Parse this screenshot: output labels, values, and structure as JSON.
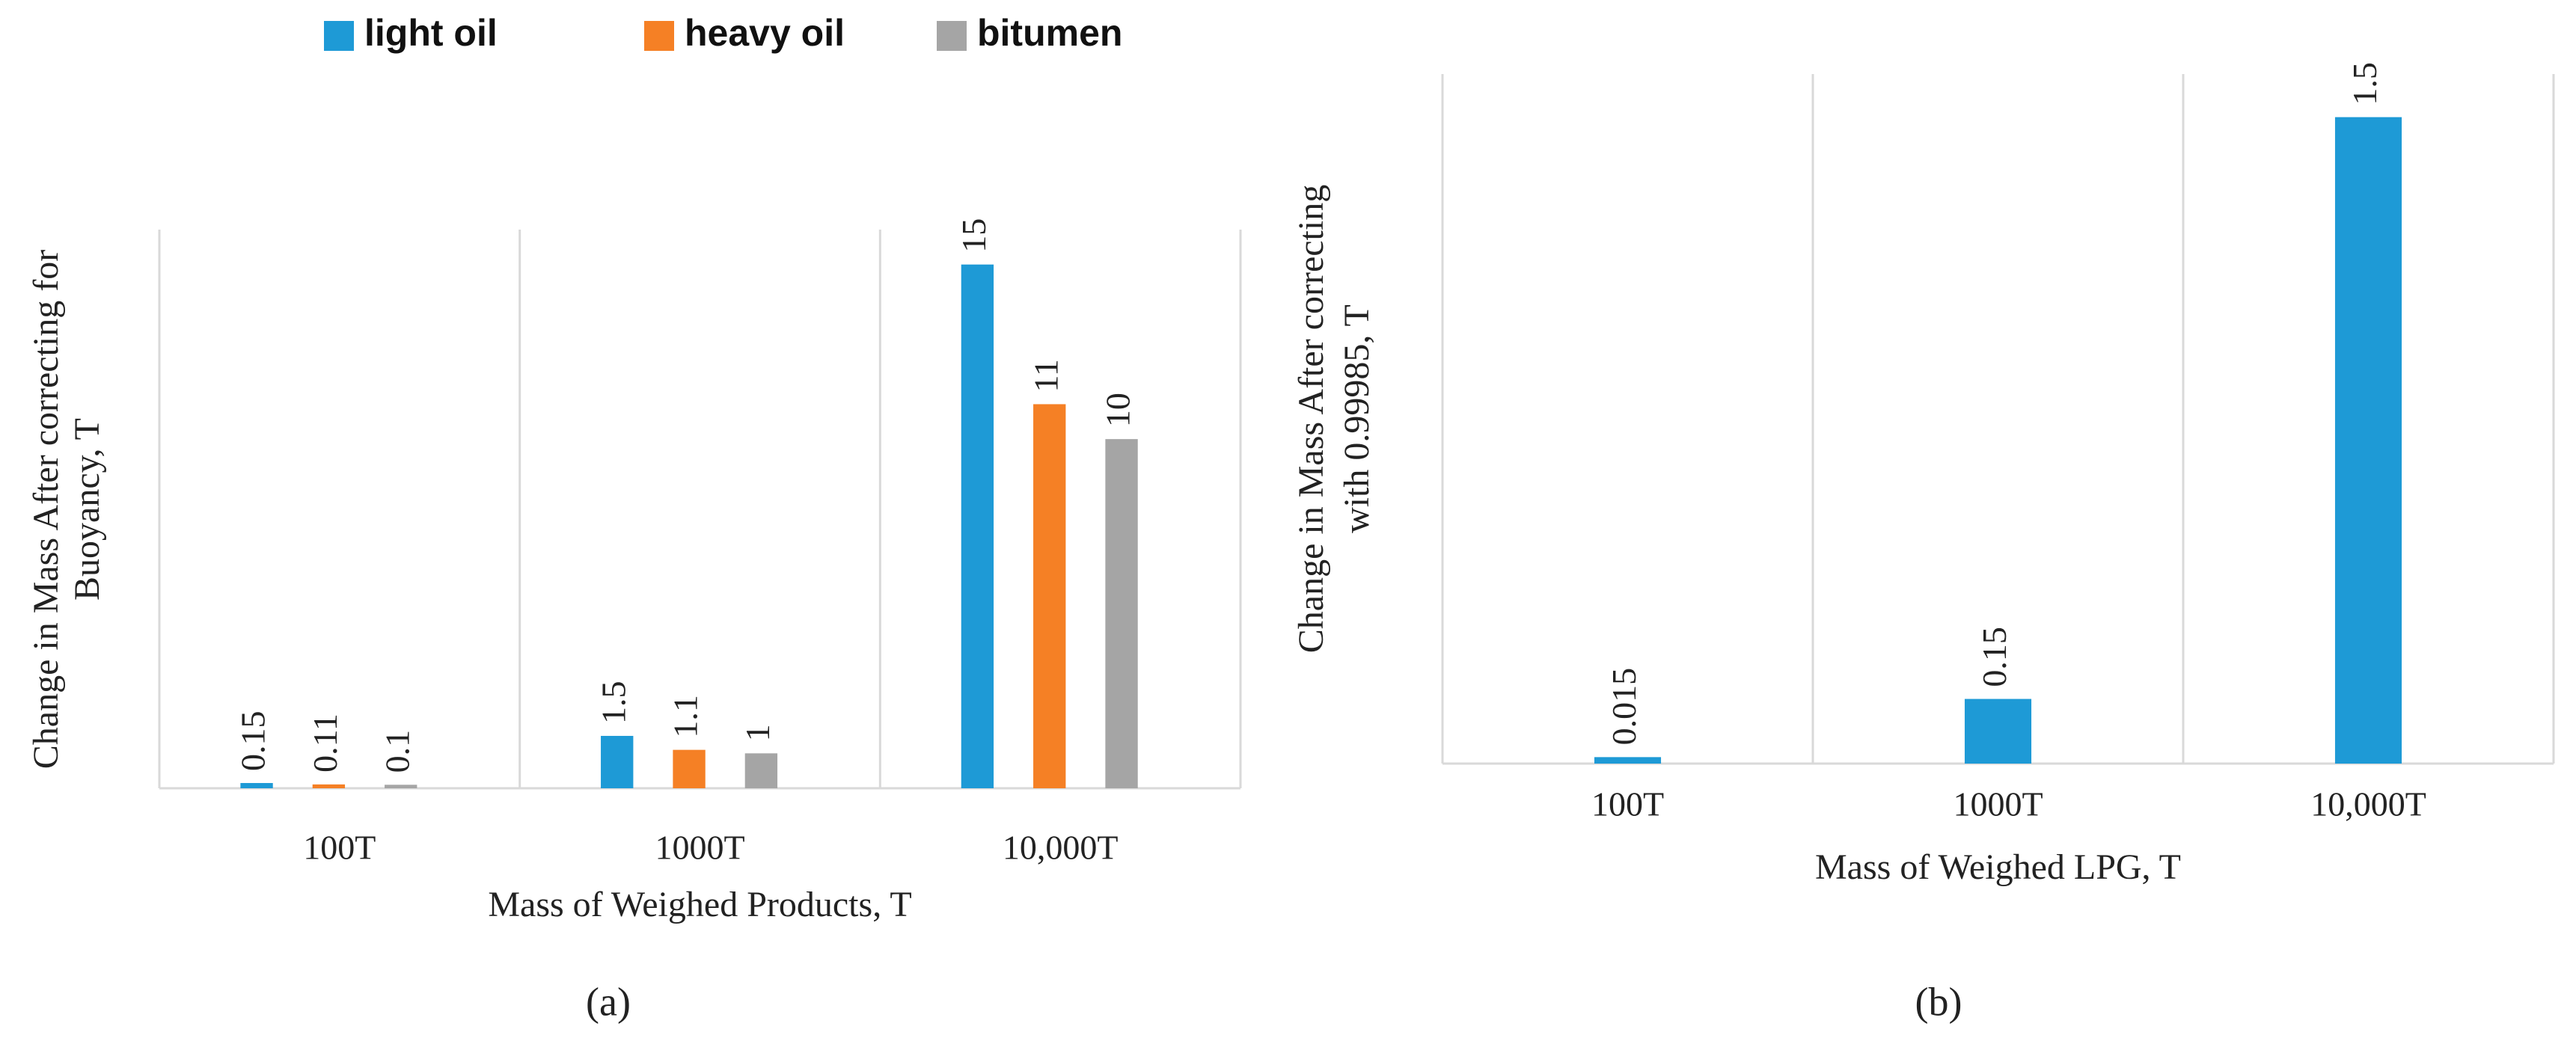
{
  "chart_data": [
    {
      "type": "bar",
      "y_label": [
        "Change in Mass After correcting for",
        "Buoyancy, T"
      ],
      "x_label": "Mass of Weighed Products, T",
      "caption": "(a)",
      "categories": [
        "100T",
        "1000T",
        "10,000T"
      ],
      "series": [
        {
          "name": "light oil",
          "color": "#1e9ad6",
          "values": [
            0.15,
            1.5,
            15
          ]
        },
        {
          "name": "heavy oil",
          "color": "#f58025",
          "values": [
            0.11,
            1.1,
            11
          ]
        },
        {
          "name": "bitumen",
          "color": "#a5a5a5",
          "values": [
            0.1,
            1,
            10
          ]
        }
      ],
      "ylim": [
        0,
        16
      ]
    },
    {
      "type": "bar",
      "y_label": [
        "Change in Mass After correcting",
        "with 0.99985, T"
      ],
      "x_label": "Mass of Weighed LPG, T",
      "caption": "(b)",
      "categories": [
        "100T",
        "1000T",
        "10,000T"
      ],
      "values": [
        0.015,
        0.15,
        1.5
      ],
      "color": "#1e9ad6",
      "ylim": [
        0,
        1.6
      ]
    }
  ]
}
